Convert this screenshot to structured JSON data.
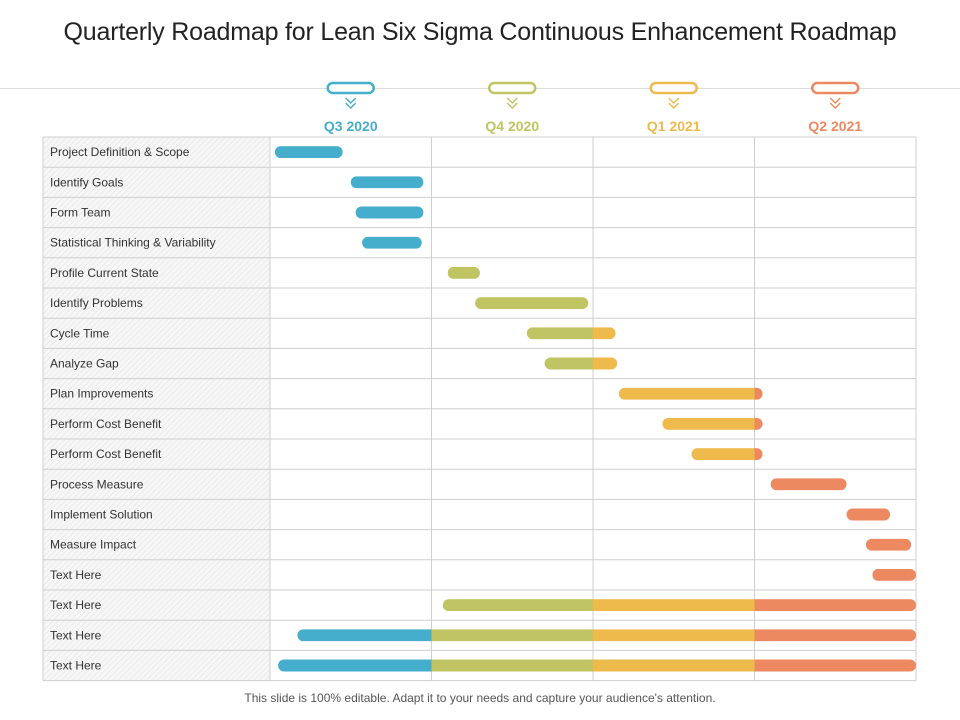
{
  "title": "Quarterly Roadmap for Lean Six Sigma Continuous Enhancement Roadmap",
  "footer": "This slide is 100% editable. Adapt it to your needs and capture your audience's attention.",
  "colors": {
    "q3": "#45aecc",
    "q4": "#c0c462",
    "q1": "#eeba4c",
    "q2": "#ec8960",
    "grid": "#cfcfcf",
    "label_bg": "#f2f2f2"
  },
  "chart_data": {
    "type": "gantt",
    "title": "Quarterly Roadmap for Lean Six Sigma Continuous Enhancement Roadmap",
    "units": "quarters from start of Q3 2020",
    "xlim": [
      0,
      4
    ],
    "quarters": [
      {
        "label": "Q3 2020",
        "color": "#45aecc"
      },
      {
        "label": "Q4 2020",
        "color": "#c0c462"
      },
      {
        "label": "Q1 2021",
        "color": "#eeba4c"
      },
      {
        "label": "Q2 2021",
        "color": "#ec8960"
      }
    ],
    "tasks": [
      {
        "label": "Project Definition & Scope",
        "start": 0.03,
        "end": 0.45
      },
      {
        "label": "Identify Goals",
        "start": 0.5,
        "end": 0.95
      },
      {
        "label": "Form Team",
        "start": 0.53,
        "end": 0.95
      },
      {
        "label": "Statistical Thinking & Variability",
        "start": 0.57,
        "end": 0.94
      },
      {
        "label": "Profile Current State",
        "start": 1.1,
        "end": 1.3
      },
      {
        "label": "Identify Problems",
        "start": 1.27,
        "end": 1.97
      },
      {
        "label": "Cycle Time",
        "start": 1.59,
        "end": 2.14
      },
      {
        "label": "Analyze Gap",
        "start": 1.7,
        "end": 2.15
      },
      {
        "label": "Plan Improvements",
        "start": 2.16,
        "end": 3.05
      },
      {
        "label": "Perform Cost Benefit",
        "start": 2.43,
        "end": 3.05
      },
      {
        "label": "Perform Cost Benefit",
        "start": 2.61,
        "end": 3.05
      },
      {
        "label": "Process Measure",
        "start": 3.1,
        "end": 3.57
      },
      {
        "label": "Implement Solution",
        "start": 3.57,
        "end": 3.84
      },
      {
        "label": "Measure Impact",
        "start": 3.69,
        "end": 3.97
      },
      {
        "label": "Text Here",
        "start": 3.73,
        "end": 4.0
      },
      {
        "label": "Text Here",
        "start": 1.07,
        "end": 4.0
      },
      {
        "label": "Text Here",
        "start": 0.17,
        "end": 4.0
      },
      {
        "label": "Text Here",
        "start": 0.05,
        "end": 4.0
      }
    ]
  }
}
